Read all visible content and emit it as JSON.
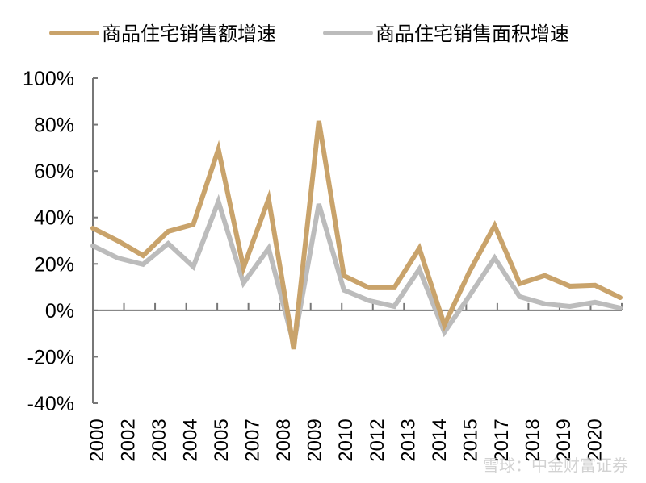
{
  "chart_data": {
    "type": "line",
    "title": "",
    "xlabel": "",
    "ylabel": "",
    "ylim": [
      -40,
      100
    ],
    "yticks": [
      "-40%",
      "-20%",
      "0%",
      "20%",
      "40%",
      "60%",
      "80%",
      "100%"
    ],
    "ytick_values": [
      -40,
      -20,
      0,
      20,
      40,
      60,
      80,
      100
    ],
    "xtick_labels": [
      "2000",
      "2002",
      "2003",
      "2004",
      "2005",
      "2007",
      "2008",
      "2009",
      "2010",
      "2012",
      "2013",
      "2014",
      "2015",
      "2017",
      "2018",
      "2019",
      "2020"
    ],
    "x": [
      2000,
      2001,
      2002,
      2003,
      2004,
      2005,
      2006,
      2007,
      2008,
      2009,
      2010,
      2011,
      2012,
      2013,
      2014,
      2015,
      2016,
      2017,
      2018,
      2019,
      2020,
      2021
    ],
    "series": [
      {
        "name": "商品住宅销售额增速",
        "color": "#c9a36b",
        "values": [
          35.4,
          29.9,
          23.6,
          34.0,
          37.0,
          69.4,
          18.4,
          48.0,
          -16.7,
          81.6,
          14.9,
          9.7,
          9.7,
          26.7,
          -6.3,
          16.7,
          36.5,
          11.5,
          15.0,
          10.4,
          10.8,
          5.5
        ]
      },
      {
        "name": "商品住宅销售面积增速",
        "color": "#bcbcbc",
        "values": [
          27.8,
          22.5,
          19.8,
          28.8,
          18.8,
          46.9,
          11.8,
          26.7,
          -14.6,
          45.8,
          8.7,
          4.2,
          1.7,
          17.7,
          -9.4,
          6.3,
          22.6,
          5.9,
          2.8,
          1.7,
          3.5,
          1.0
        ]
      }
    ],
    "grid": false,
    "legend_placement": "top",
    "watermark": "雪球：中金财富证券"
  }
}
